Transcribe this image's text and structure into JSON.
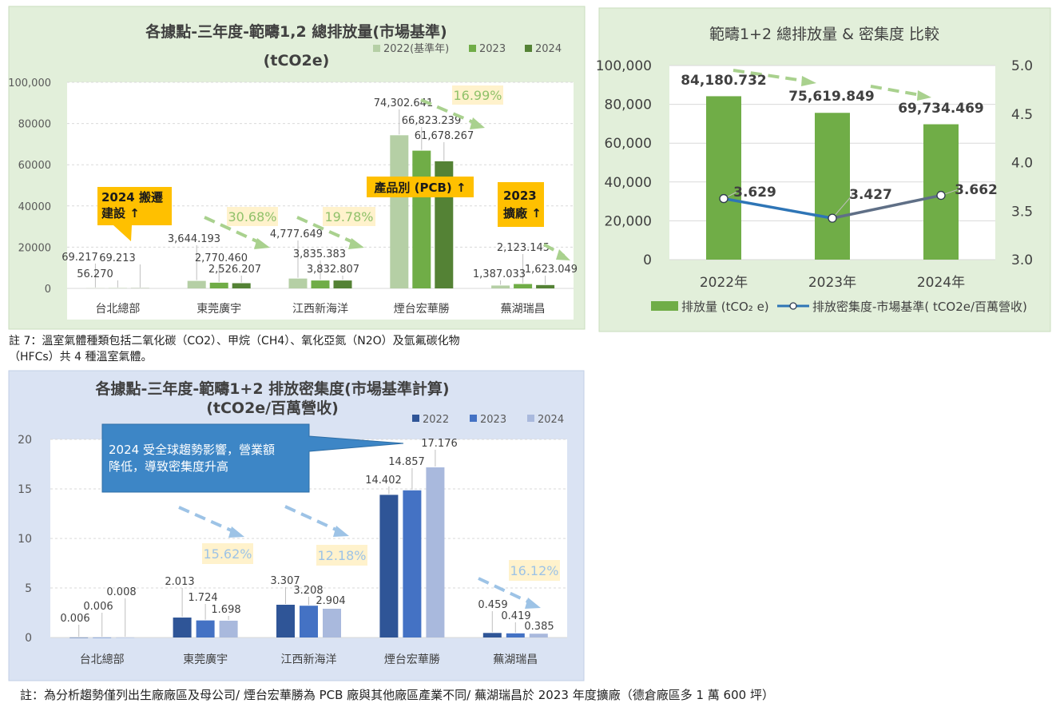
{
  "colors": {
    "panel1_bg": "#e2efda",
    "panel2_bg": "#e2efda",
    "panel3_bg": "#dae3f3",
    "green_light": "#b5cfa5",
    "green_mid": "#70ad47",
    "green_dark": "#548235",
    "blue_dark": "#2f5597",
    "blue_mid": "#4472c4",
    "blue_light": "#a9b9dd",
    "callout_yellow": "#ffc000",
    "callout_blue": "#3d86c6",
    "pct_bg": "#fff2cc",
    "pct_green": "#8fc16a",
    "pct_blue": "#9dc3e6",
    "line_blue": "#2e75b6",
    "line_gray": "#5f6f86"
  },
  "notes": {
    "note7_line1": "註 7：溫室氣體種類包括二氧化碳（CO2）、甲烷（CH4）、氧化亞氮（N2O）及氫氟碳化物",
    "note7_line2": "（HFCs）共 4 種溫室氣體。",
    "note_bottom": "註：為分析趨勢僅列出生廠廠區及母公司/ 煙台宏華勝為 PCB 廠與其他廠區產業不同/  蕪湖瑞昌於 2023 年度擴廠（德倉廠區多 1 萬 600 坪）"
  },
  "chart_data": [
    {
      "id": "scope12_by_site",
      "type": "bar",
      "title": "各據點-三年度-範疇1,2 總排放量(市場基準)",
      "subtitle": "(tCO2e)",
      "categories": [
        "台北總部",
        "東莞廣宇",
        "江西新海洋",
        "煙台宏華勝",
        "蕪湖瑞昌"
      ],
      "series": [
        {
          "name": "2022(基準年)",
          "values": [
            69.217,
            3644.193,
            4777.649,
            74302.641,
            1387.033
          ]
        },
        {
          "name": "2023",
          "values": [
            56.27,
            2770.46,
            3835.383,
            66823.239,
            2123.145
          ]
        },
        {
          "name": "2024",
          "values": [
            69.213,
            2526.207,
            3832.807,
            61678.267,
            1623.049
          ]
        }
      ],
      "data_labels": [
        [
          "69.217",
          "56.270",
          "69.213"
        ],
        [
          "3,644.193",
          "2,770.460",
          "2,526.207"
        ],
        [
          "4,777.649",
          "3,835.383",
          "3,832.807"
        ],
        [
          "74,302.641",
          "66,823.239",
          "61,678.267"
        ],
        [
          "1,387.033",
          "2,123.145",
          "1,623.049"
        ]
      ],
      "ylim": [
        0,
        100000
      ],
      "yticks": [
        "0",
        "20000",
        "40000",
        "60000",
        "80000",
        "100,000"
      ],
      "percent_labels": [
        "30.68%",
        "19.78%",
        "16.99%"
      ],
      "callouts": [
        "2024 搬遷 建設 ↑",
        "產品別 (PCB) ↑",
        "2023 擴廠 ↑"
      ],
      "legend_position": "top-right",
      "grid": true
    },
    {
      "id": "scope12_total_vs_intensity",
      "type": "bar",
      "title": "範疇1+2 總排放量 & 密集度 比較",
      "categories": [
        "2022年",
        "2023年",
        "2024年"
      ],
      "series": [
        {
          "name": "排放量 (tCO₂ e)",
          "values": [
            84180.732,
            75619.849,
            69734.469
          ],
          "axis": "left"
        },
        {
          "name": "排放密集度-市場基準( tCO2e/百萬營收)",
          "values": [
            3.629,
            3.427,
            3.662
          ],
          "axis": "right",
          "type": "line"
        }
      ],
      "data_labels_bar": [
        "84,180.732",
        "75,619.849",
        "69,734.469"
      ],
      "data_labels_line": [
        "3.629",
        "3.427",
        "3.662"
      ],
      "ylim": [
        0,
        100000
      ],
      "yticks_left": [
        "0",
        "20,000",
        "40,000",
        "60,000",
        "80,000",
        "100,000"
      ],
      "y2lim": [
        3.0,
        5.0
      ],
      "yticks_right": [
        "3.0",
        "3.5",
        "4.0",
        "4.5",
        "5.0"
      ],
      "legend_position": "bottom",
      "grid": true
    },
    {
      "id": "intensity_by_site",
      "type": "bar",
      "title": "各據點-三年度-範疇1+2 排放密集度(市場基準計算)",
      "subtitle": "(tCO2e/百萬營收)",
      "categories": [
        "台北總部",
        "東莞廣宇",
        "江西新海洋",
        "煙台宏華勝",
        "蕪湖瑞昌"
      ],
      "series": [
        {
          "name": "2022",
          "values": [
            0.006,
            2.013,
            3.307,
            14.402,
            0.459
          ]
        },
        {
          "name": "2023",
          "values": [
            0.006,
            1.724,
            3.208,
            14.857,
            0.419
          ]
        },
        {
          "name": "2024",
          "values": [
            0.008,
            1.698,
            2.904,
            17.176,
            0.385
          ]
        }
      ],
      "data_labels": [
        [
          "0.006",
          "0.006",
          "0.008"
        ],
        [
          "2.013",
          "1.724",
          "1.698"
        ],
        [
          "3.307",
          "3.208",
          "2.904"
        ],
        [
          "14.402",
          "14.857",
          "17.176"
        ],
        [
          "0.459",
          "0.419",
          "0.385"
        ]
      ],
      "ylim": [
        0,
        20
      ],
      "yticks": [
        "0",
        "5",
        "10",
        "15",
        "20"
      ],
      "percent_labels": [
        "15.62%",
        "12.18%",
        "16.12%"
      ],
      "callout": "2024 受全球趨勢影響，營業額 降低，導致密集度升高",
      "legend_position": "top-right",
      "grid": true
    }
  ]
}
